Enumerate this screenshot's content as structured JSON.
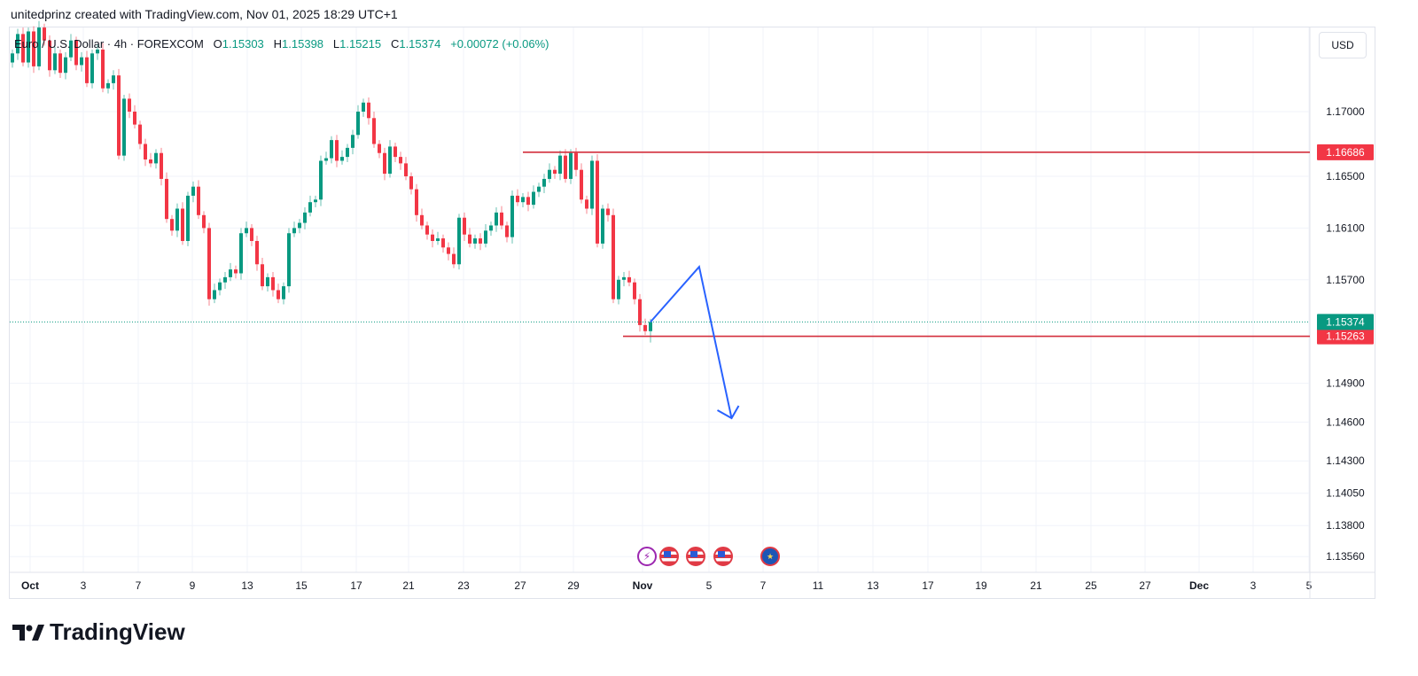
{
  "credit": "unitedprinz created with TradingView.com, Nov 01, 2025 18:29 UTC+1",
  "legend": {
    "symbol": "Euro / U.S. Dollar · 4h · FOREXCOM",
    "o_label": "O",
    "o": "1.15303",
    "h_label": "H",
    "h": "1.15398",
    "l_label": "L",
    "l": "1.15215",
    "c_label": "C",
    "c": "1.15374",
    "change": "+0.00072 (+0.06%)"
  },
  "currency_button": "USD",
  "brand": "TradingView",
  "colors": {
    "up": "#089981",
    "down": "#f23645",
    "drawing": "#2962ff",
    "level": "#d32f3c"
  },
  "events": [
    {
      "icon": "lightning-icon",
      "type": "lit"
    },
    {
      "icon": "us-flag-icon",
      "type": "us"
    },
    {
      "icon": "us-flag-icon",
      "type": "us"
    },
    {
      "icon": "us-flag-icon",
      "type": "us"
    },
    {
      "icon": "eu-flag-icon",
      "type": "eu"
    }
  ],
  "chart_data": {
    "type": "candlestick",
    "title": "Euro / U.S. Dollar · 4h · FOREXCOM",
    "ylabel": "USD",
    "ylim": [
      1.1344,
      1.1764
    ],
    "y_ticks": [
      "1.17000",
      "1.16500",
      "1.16100",
      "1.15700",
      "1.14900",
      "1.14600",
      "1.14300",
      "1.14050",
      "1.13800",
      "1.13560"
    ],
    "x_ticks": [
      "Oct",
      "3",
      "7",
      "9",
      "13",
      "15",
      "17",
      "21",
      "23",
      "27",
      "29",
      "Nov",
      "5",
      "7",
      "11",
      "13",
      "17",
      "19",
      "21",
      "25",
      "27",
      "Dec",
      "3",
      "5"
    ],
    "first_open": 1.1738,
    "close": [
      1.1745,
      1.176,
      1.1738,
      1.1762,
      1.1735,
      1.1765,
      1.1755,
      1.1732,
      1.1745,
      1.173,
      1.1742,
      1.1755,
      1.1736,
      1.1742,
      1.1722,
      1.1745,
      1.1748,
      1.1718,
      1.1722,
      1.1728,
      1.1666,
      1.171,
      1.17,
      1.169,
      1.1675,
      1.1663,
      1.166,
      1.1668,
      1.1648,
      1.1617,
      1.1608,
      1.1625,
      1.16,
      1.1635,
      1.1642,
      1.162,
      1.161,
      1.1555,
      1.1562,
      1.1568,
      1.1572,
      1.1578,
      1.1575,
      1.1606,
      1.161,
      1.16,
      1.1582,
      1.1565,
      1.1572,
      1.1562,
      1.1555,
      1.1565,
      1.1606,
      1.161,
      1.1614,
      1.1622,
      1.163,
      1.1632,
      1.1662,
      1.1664,
      1.1678,
      1.1662,
      1.1665,
      1.1672,
      1.1682,
      1.17,
      1.1707,
      1.1695,
      1.1675,
      1.1668,
      1.1652,
      1.1673,
      1.1665,
      1.166,
      1.165,
      1.164,
      1.162,
      1.1612,
      1.1605,
      1.16,
      1.1602,
      1.1595,
      1.159,
      1.1582,
      1.1618,
      1.1605,
      1.1598,
      1.1602,
      1.1598,
      1.1608,
      1.1612,
      1.1622,
      1.1612,
      1.1603,
      1.1635,
      1.163,
      1.1634,
      1.1628,
      1.1638,
      1.1642,
      1.1648,
      1.1655,
      1.1652,
      1.1666,
      1.1648,
      1.1668,
      1.1655,
      1.1632,
      1.1625,
      1.1662,
      1.1598,
      1.1625,
      1.162,
      1.1555,
      1.157,
      1.1572,
      1.1568,
      1.1555,
      1.1535,
      1.15303,
      1.15374
    ],
    "last_candle": {
      "open": 1.15303,
      "high": 1.15398,
      "low": 1.15215,
      "close": 1.15374
    },
    "levels": [
      {
        "price": 1.16686,
        "label": "1.16686",
        "kind": "resistance"
      },
      {
        "price": 1.15263,
        "label": "1.15263",
        "kind": "support"
      }
    ],
    "current_price": {
      "price": 1.15374,
      "label": "1.15374"
    },
    "projection": [
      {
        "bar_offset": 0,
        "price": 1.15374
      },
      {
        "bar_offset": 9,
        "price": 1.158
      },
      {
        "bar_offset": 15,
        "price": 1.1463
      }
    ]
  }
}
